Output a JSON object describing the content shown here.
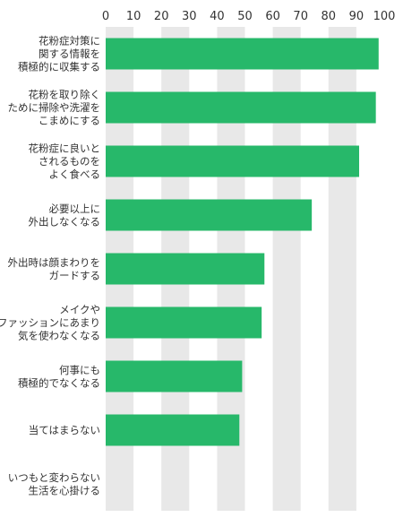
{
  "chart_data": {
    "type": "bar",
    "orientation": "horizontal",
    "title": "",
    "xlabel": "",
    "ylabel": "",
    "xlim": [
      0,
      100
    ],
    "ticks": [
      0,
      10,
      20,
      30,
      40,
      50,
      60,
      70,
      80,
      90,
      100
    ],
    "tick_position": "top",
    "grid": false,
    "legend": "none",
    "bar_color": "#27b86a",
    "background_band_color": "#e8e8e8",
    "categories": [
      [
        "花粉症対策に",
        "関する情報を",
        "積極的に収集する"
      ],
      [
        "花粉を取り除く",
        "ために掃除や洗濯を",
        "こまめにする"
      ],
      [
        "花粉症に良いと",
        "されるものを",
        "よく食べる"
      ],
      [
        "必要以上に",
        "外出しなくなる"
      ],
      [
        "外出時は顔まわりを",
        "ガードする"
      ],
      [
        "メイクや",
        "ファッションにあまり",
        "気を使わなくなる"
      ],
      [
        "何事にも",
        "積極的でなくなる"
      ],
      [
        "当てはまらない"
      ],
      [
        "いつもと変わらない",
        "生活を心掛ける"
      ]
    ],
    "values": [
      98,
      97,
      91,
      74,
      57,
      56,
      49,
      48,
      0
    ]
  }
}
